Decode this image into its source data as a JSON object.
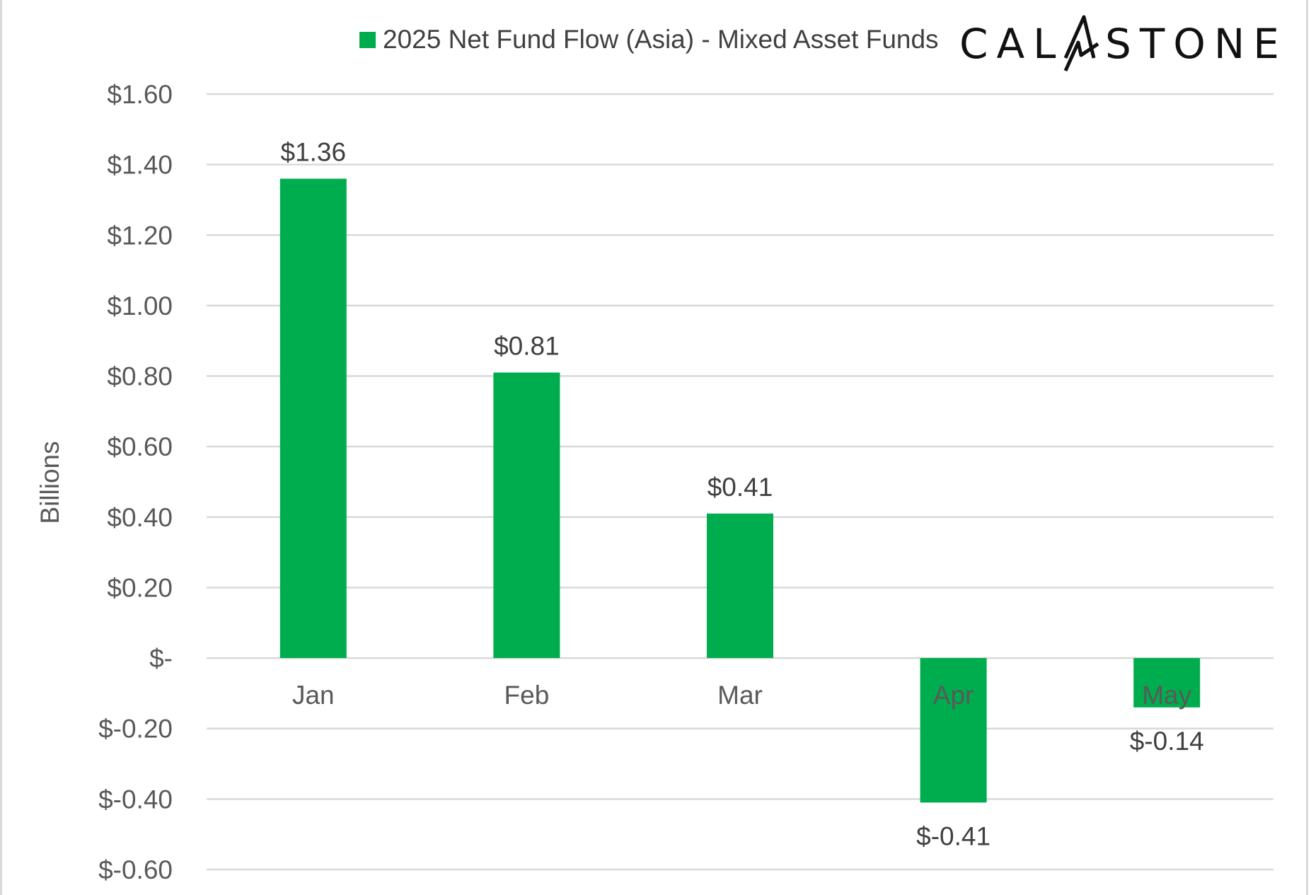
{
  "legend": {
    "label": "2025 Net Fund Flow (Asia) - Mixed Asset Funds",
    "color": "#00ad4e"
  },
  "logo": {
    "left": "CAL",
    "right": "STONE",
    "color": "#111111"
  },
  "colors": {
    "bar": "#00ad4e",
    "grid": "#d9d9d9",
    "text": "#595959",
    "data_label": "#404040"
  },
  "chart_data": {
    "type": "bar",
    "categories": [
      "Jan",
      "Feb",
      "Mar",
      "Apr",
      "May"
    ],
    "series": [
      {
        "name": "2025 Net Fund Flow (Asia) - Mixed Asset Funds",
        "values": [
          1.36,
          0.81,
          0.41,
          -0.41,
          -0.14
        ]
      }
    ],
    "data_labels": [
      "$1.36",
      "$0.81",
      "$0.41",
      "$-0.41",
      "$-0.14"
    ],
    "ylabel": "Billions",
    "ylim": [
      -0.6,
      1.6
    ],
    "yticks": [
      1.6,
      1.4,
      1.2,
      1.0,
      0.8,
      0.6,
      0.4,
      0.2,
      0,
      -0.2,
      -0.4,
      -0.6
    ],
    "ytick_labels": [
      "$1.60",
      "$1.40",
      "$1.20",
      "$1.00",
      "$0.80",
      "$0.60",
      "$0.40",
      "$0.20",
      "$-",
      "$-0.20",
      "$-0.40",
      "$-0.60"
    ],
    "grid": true,
    "legend_position": "top"
  }
}
